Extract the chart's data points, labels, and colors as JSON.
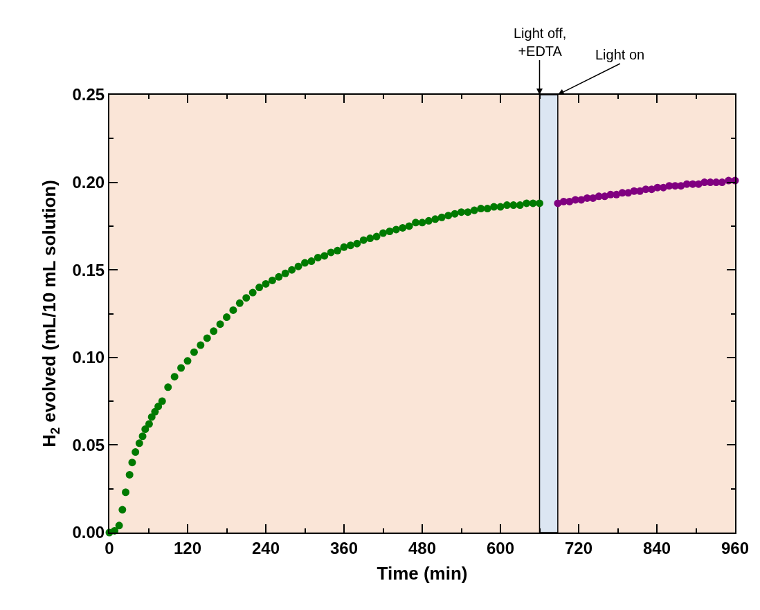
{
  "chart_data": {
    "type": "scatter",
    "xlabel": "Time (min)",
    "ylabel": "H$_{2}$ evolved (mL/10 mL solution)",
    "xlim": [
      0,
      960
    ],
    "xticks": [
      0,
      120,
      240,
      360,
      480,
      600,
      720,
      840,
      960
    ],
    "ylim": [
      0,
      0.25
    ],
    "yticks": [
      {
        "value": 0,
        "label": "0.00"
      },
      {
        "value": 0.05,
        "label": "0.05"
      },
      {
        "value": 0.1,
        "label": "0.10"
      },
      {
        "value": 0.15,
        "label": "0.15"
      },
      {
        "value": 0.2,
        "label": "0.20"
      },
      {
        "value": 0.25,
        "label": "0.25"
      }
    ],
    "grid": false,
    "legend": false,
    "marker": "circle",
    "bands": [
      {
        "axis": "x",
        "from": 660,
        "to": 688,
        "color": "#dce6f2"
      }
    ],
    "annotations": [
      {
        "text": "Light off,\n+EDTA",
        "x": 660,
        "y": 0.25
      },
      {
        "text": "Light on",
        "x": 688,
        "y": 0.25
      }
    ],
    "series": [
      {
        "color": "#007a00",
        "x": [
          0,
          8,
          15,
          20,
          25,
          31,
          35,
          40,
          46,
          51,
          55,
          61,
          65,
          70,
          75,
          81,
          90,
          100,
          110,
          120,
          130,
          140,
          150,
          160,
          170,
          180,
          190,
          200,
          210,
          220,
          230,
          240,
          250,
          260,
          270,
          280,
          290,
          300,
          310,
          320,
          330,
          340,
          350,
          360,
          370,
          380,
          390,
          400,
          410,
          420,
          430,
          440,
          450,
          460,
          470,
          480,
          490,
          500,
          510,
          520,
          530,
          540,
          550,
          560,
          570,
          580,
          590,
          600,
          610,
          620,
          630,
          640,
          650,
          660
        ],
        "values": [
          0,
          0.001,
          0.004,
          0.013,
          0.023,
          0.033,
          0.04,
          0.046,
          0.051,
          0.055,
          0.059,
          0.062,
          0.066,
          0.069,
          0.072,
          0.075,
          0.083,
          0.089,
          0.094,
          0.098,
          0.103,
          0.107,
          0.111,
          0.115,
          0.119,
          0.123,
          0.127,
          0.131,
          0.134,
          0.137,
          0.14,
          0.142,
          0.144,
          0.146,
          0.148,
          0.15,
          0.152,
          0.154,
          0.155,
          0.157,
          0.158,
          0.16,
          0.161,
          0.163,
          0.164,
          0.165,
          0.167,
          0.168,
          0.169,
          0.171,
          0.172,
          0.173,
          0.174,
          0.175,
          0.177,
          0.177,
          0.178,
          0.179,
          0.18,
          0.181,
          0.182,
          0.183,
          0.183,
          0.184,
          0.185,
          0.185,
          0.186,
          0.186,
          0.187,
          0.187,
          0.187,
          0.188,
          0.188,
          0.188
        ]
      },
      {
        "color": "#800080",
        "x": [
          688,
          697,
          706,
          715,
          724,
          733,
          742,
          751,
          760,
          769,
          778,
          787,
          796,
          805,
          814,
          823,
          832,
          841,
          850,
          859,
          868,
          877,
          886,
          895,
          904,
          913,
          922,
          931,
          940,
          950,
          960
        ],
        "values": [
          0.188,
          0.189,
          0.189,
          0.19,
          0.19,
          0.191,
          0.191,
          0.192,
          0.192,
          0.193,
          0.193,
          0.194,
          0.194,
          0.195,
          0.195,
          0.196,
          0.196,
          0.197,
          0.197,
          0.198,
          0.198,
          0.198,
          0.199,
          0.199,
          0.199,
          0.2,
          0.2,
          0.2,
          0.2,
          0.201,
          0.201
        ]
      }
    ]
  }
}
